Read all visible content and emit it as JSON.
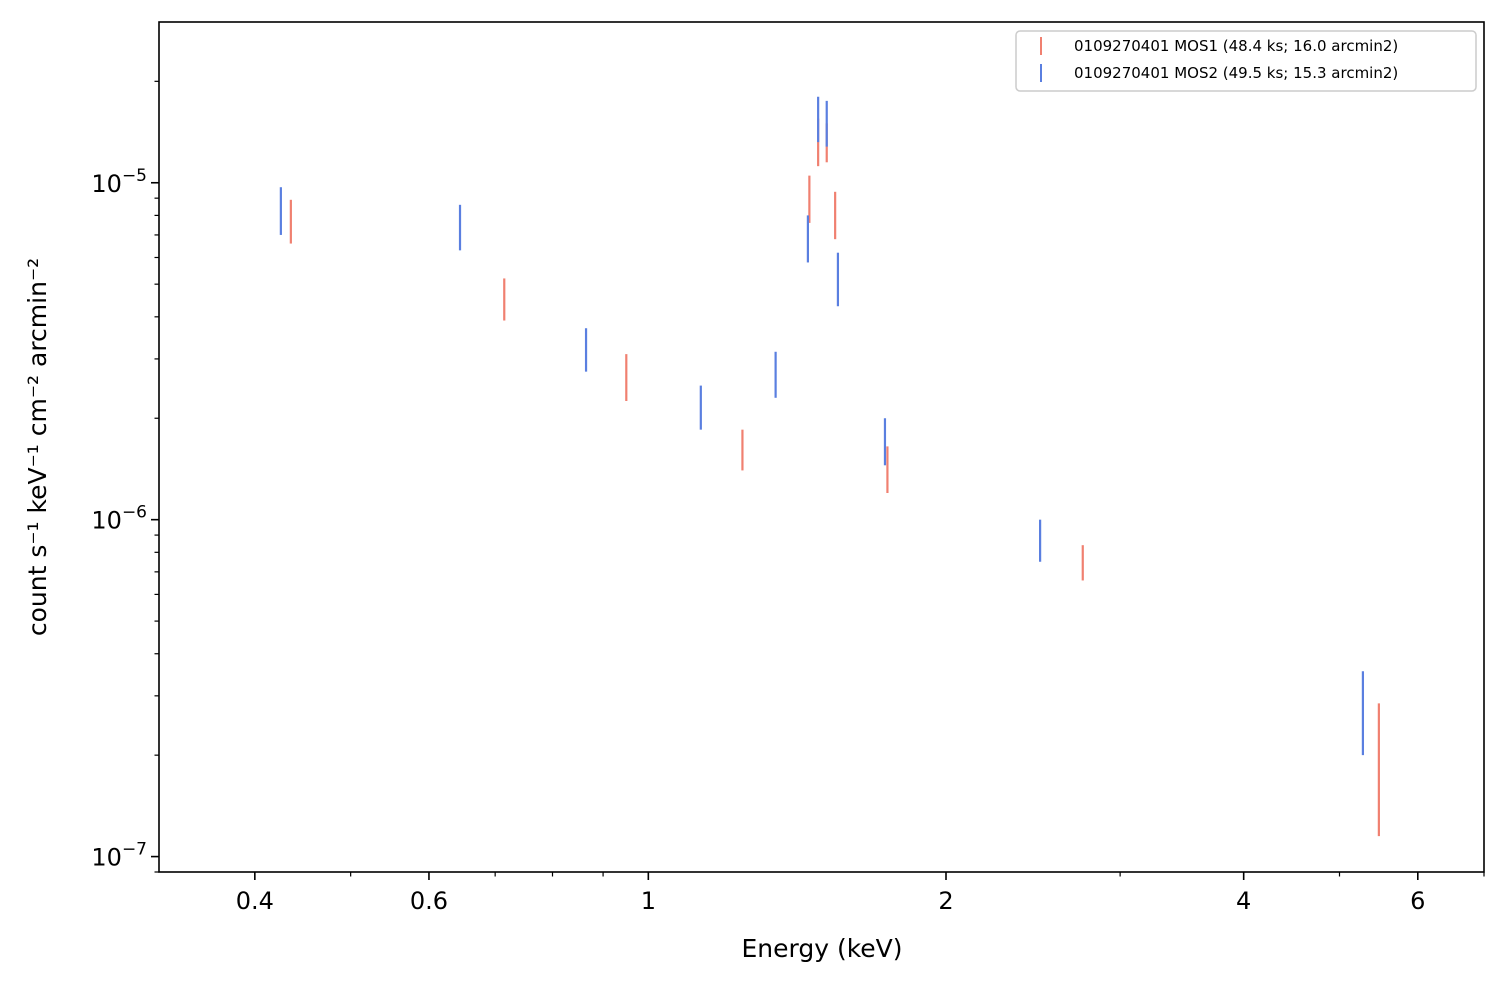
{
  "chart_data": {
    "type": "scatter",
    "title": "",
    "xlabel": "Energy (keV)",
    "ylabel": "count s⁻¹ keV⁻¹ cm⁻² arcmin⁻²",
    "xscale": "log",
    "yscale": "log",
    "xlim": [
      0.32,
      7.0
    ],
    "ylim": [
      9e-08,
      3e-05
    ],
    "x_ticks": [
      {
        "value": 0.4,
        "label": "0.4"
      },
      {
        "value": 0.6,
        "label": "0.6"
      },
      {
        "value": 1,
        "label": "1"
      },
      {
        "value": 2,
        "label": "2"
      },
      {
        "value": 4,
        "label": "4"
      },
      {
        "value": 6,
        "label": "6"
      }
    ],
    "y_ticks": [
      {
        "value": 1e-07,
        "base": "10",
        "exp": "−7"
      },
      {
        "value": 1e-06,
        "base": "10",
        "exp": "−6"
      },
      {
        "value": 1e-05,
        "base": "10",
        "exp": "−5"
      }
    ],
    "grid": false,
    "legend_position": "top-right",
    "series": [
      {
        "name": "0109270401 MOS1 (48.4 ks; 16.0 arcmin2)",
        "color": "#f08070",
        "marker": "errorbar",
        "points": [
          {
            "x": 0.435,
            "ylow": 6.6e-06,
            "yhigh": 8.9e-06
          },
          {
            "x": 0.715,
            "ylow": 3.9e-06,
            "yhigh": 5.2e-06
          },
          {
            "x": 0.95,
            "ylow": 2.25e-06,
            "yhigh": 3.1e-06
          },
          {
            "x": 1.245,
            "ylow": 1.4e-06,
            "yhigh": 1.85e-06
          },
          {
            "x": 1.455,
            "ylow": 7.6e-06,
            "yhigh": 1.05e-05
          },
          {
            "x": 1.485,
            "ylow": 1.12e-05,
            "yhigh": 1.55e-05
          },
          {
            "x": 1.515,
            "ylow": 1.15e-05,
            "yhigh": 1.5e-05
          },
          {
            "x": 1.545,
            "ylow": 6.8e-06,
            "yhigh": 9.4e-06
          },
          {
            "x": 1.745,
            "ylow": 1.2e-06,
            "yhigh": 1.65e-06
          },
          {
            "x": 2.75,
            "ylow": 6.6e-07,
            "yhigh": 8.4e-07
          },
          {
            "x": 5.48,
            "ylow": 1.15e-07,
            "yhigh": 2.85e-07
          }
        ]
      },
      {
        "name": "0109270401 MOS2 (49.5 ks; 15.3 arcmin2)",
        "color": "#5a7fe0",
        "marker": "errorbar",
        "points": [
          {
            "x": 0.425,
            "ylow": 7e-06,
            "yhigh": 9.7e-06
          },
          {
            "x": 0.645,
            "ylow": 6.3e-06,
            "yhigh": 8.6e-06
          },
          {
            "x": 0.865,
            "ylow": 2.75e-06,
            "yhigh": 3.7e-06
          },
          {
            "x": 1.13,
            "ylow": 1.85e-06,
            "yhigh": 2.5e-06
          },
          {
            "x": 1.345,
            "ylow": 2.3e-06,
            "yhigh": 3.15e-06
          },
          {
            "x": 1.45,
            "ylow": 5.8e-06,
            "yhigh": 8e-06
          },
          {
            "x": 1.485,
            "ylow": 1.32e-05,
            "yhigh": 1.8e-05
          },
          {
            "x": 1.515,
            "ylow": 1.28e-05,
            "yhigh": 1.75e-05
          },
          {
            "x": 1.555,
            "ylow": 4.3e-06,
            "yhigh": 6.2e-06
          },
          {
            "x": 1.735,
            "ylow": 1.45e-06,
            "yhigh": 2e-06
          },
          {
            "x": 2.49,
            "ylow": 7.5e-07,
            "yhigh": 1e-06
          },
          {
            "x": 5.28,
            "ylow": 2e-07,
            "yhigh": 3.55e-07
          }
        ]
      }
    ]
  }
}
